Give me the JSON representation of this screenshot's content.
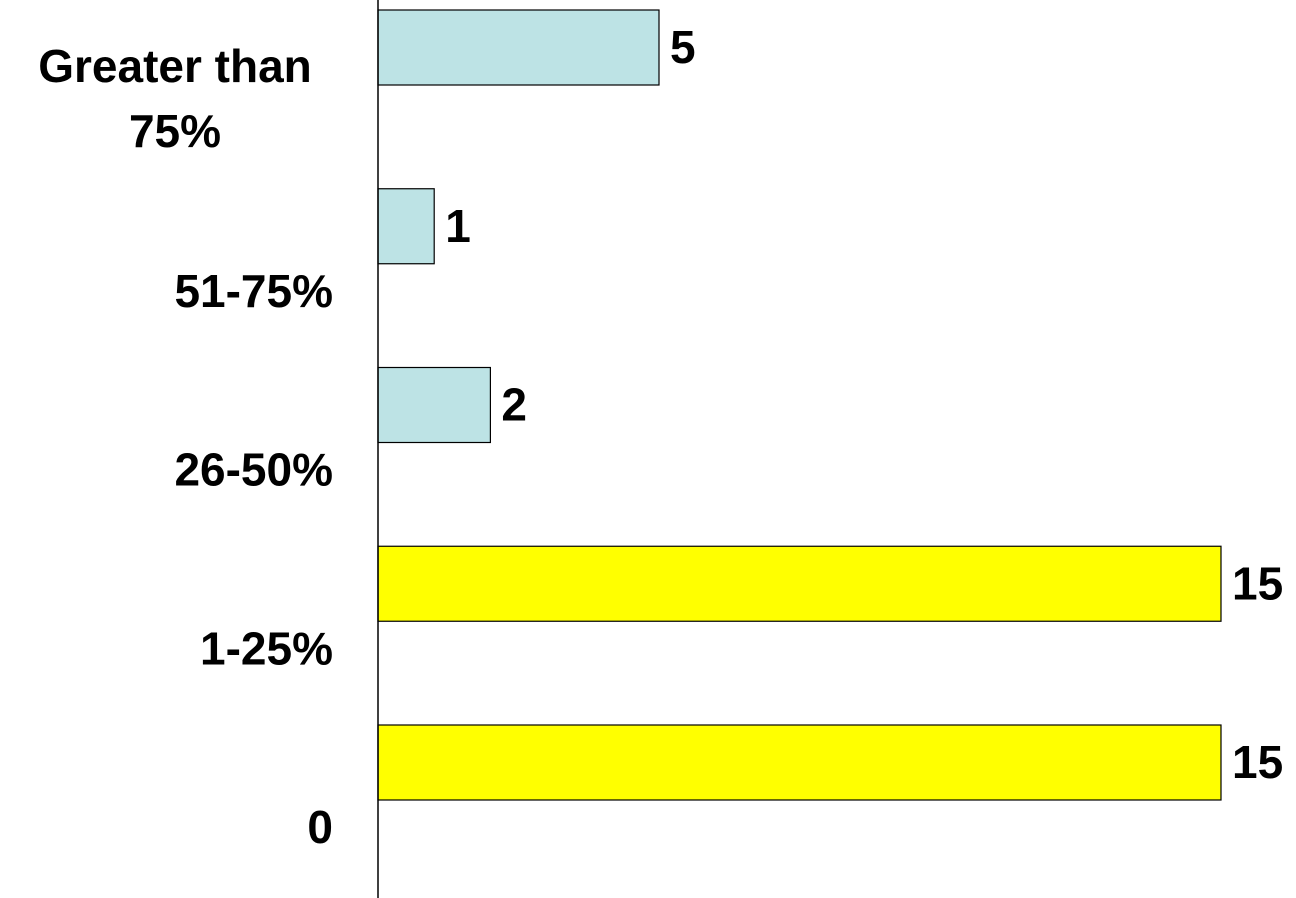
{
  "chart_data": {
    "type": "bar",
    "orientation": "horizontal",
    "categories": [
      "Greater than 75%",
      "51-75%",
      "26-50%",
      "1-25%",
      "0"
    ],
    "category_lines": [
      [
        "Greater than",
        "75%"
      ],
      [
        "51-75%"
      ],
      [
        "26-50%"
      ],
      [
        "1-25%"
      ],
      [
        "0"
      ]
    ],
    "values": [
      5,
      1,
      2,
      15,
      15
    ],
    "data_labels": [
      "5",
      "1",
      "2",
      "15",
      "15"
    ],
    "bar_colors": [
      "#bde3e5",
      "#bde3e5",
      "#bde3e5",
      "#ffff00",
      "#ffff00"
    ],
    "xlim": [
      0,
      15
    ],
    "grid": false,
    "legend": "none"
  }
}
